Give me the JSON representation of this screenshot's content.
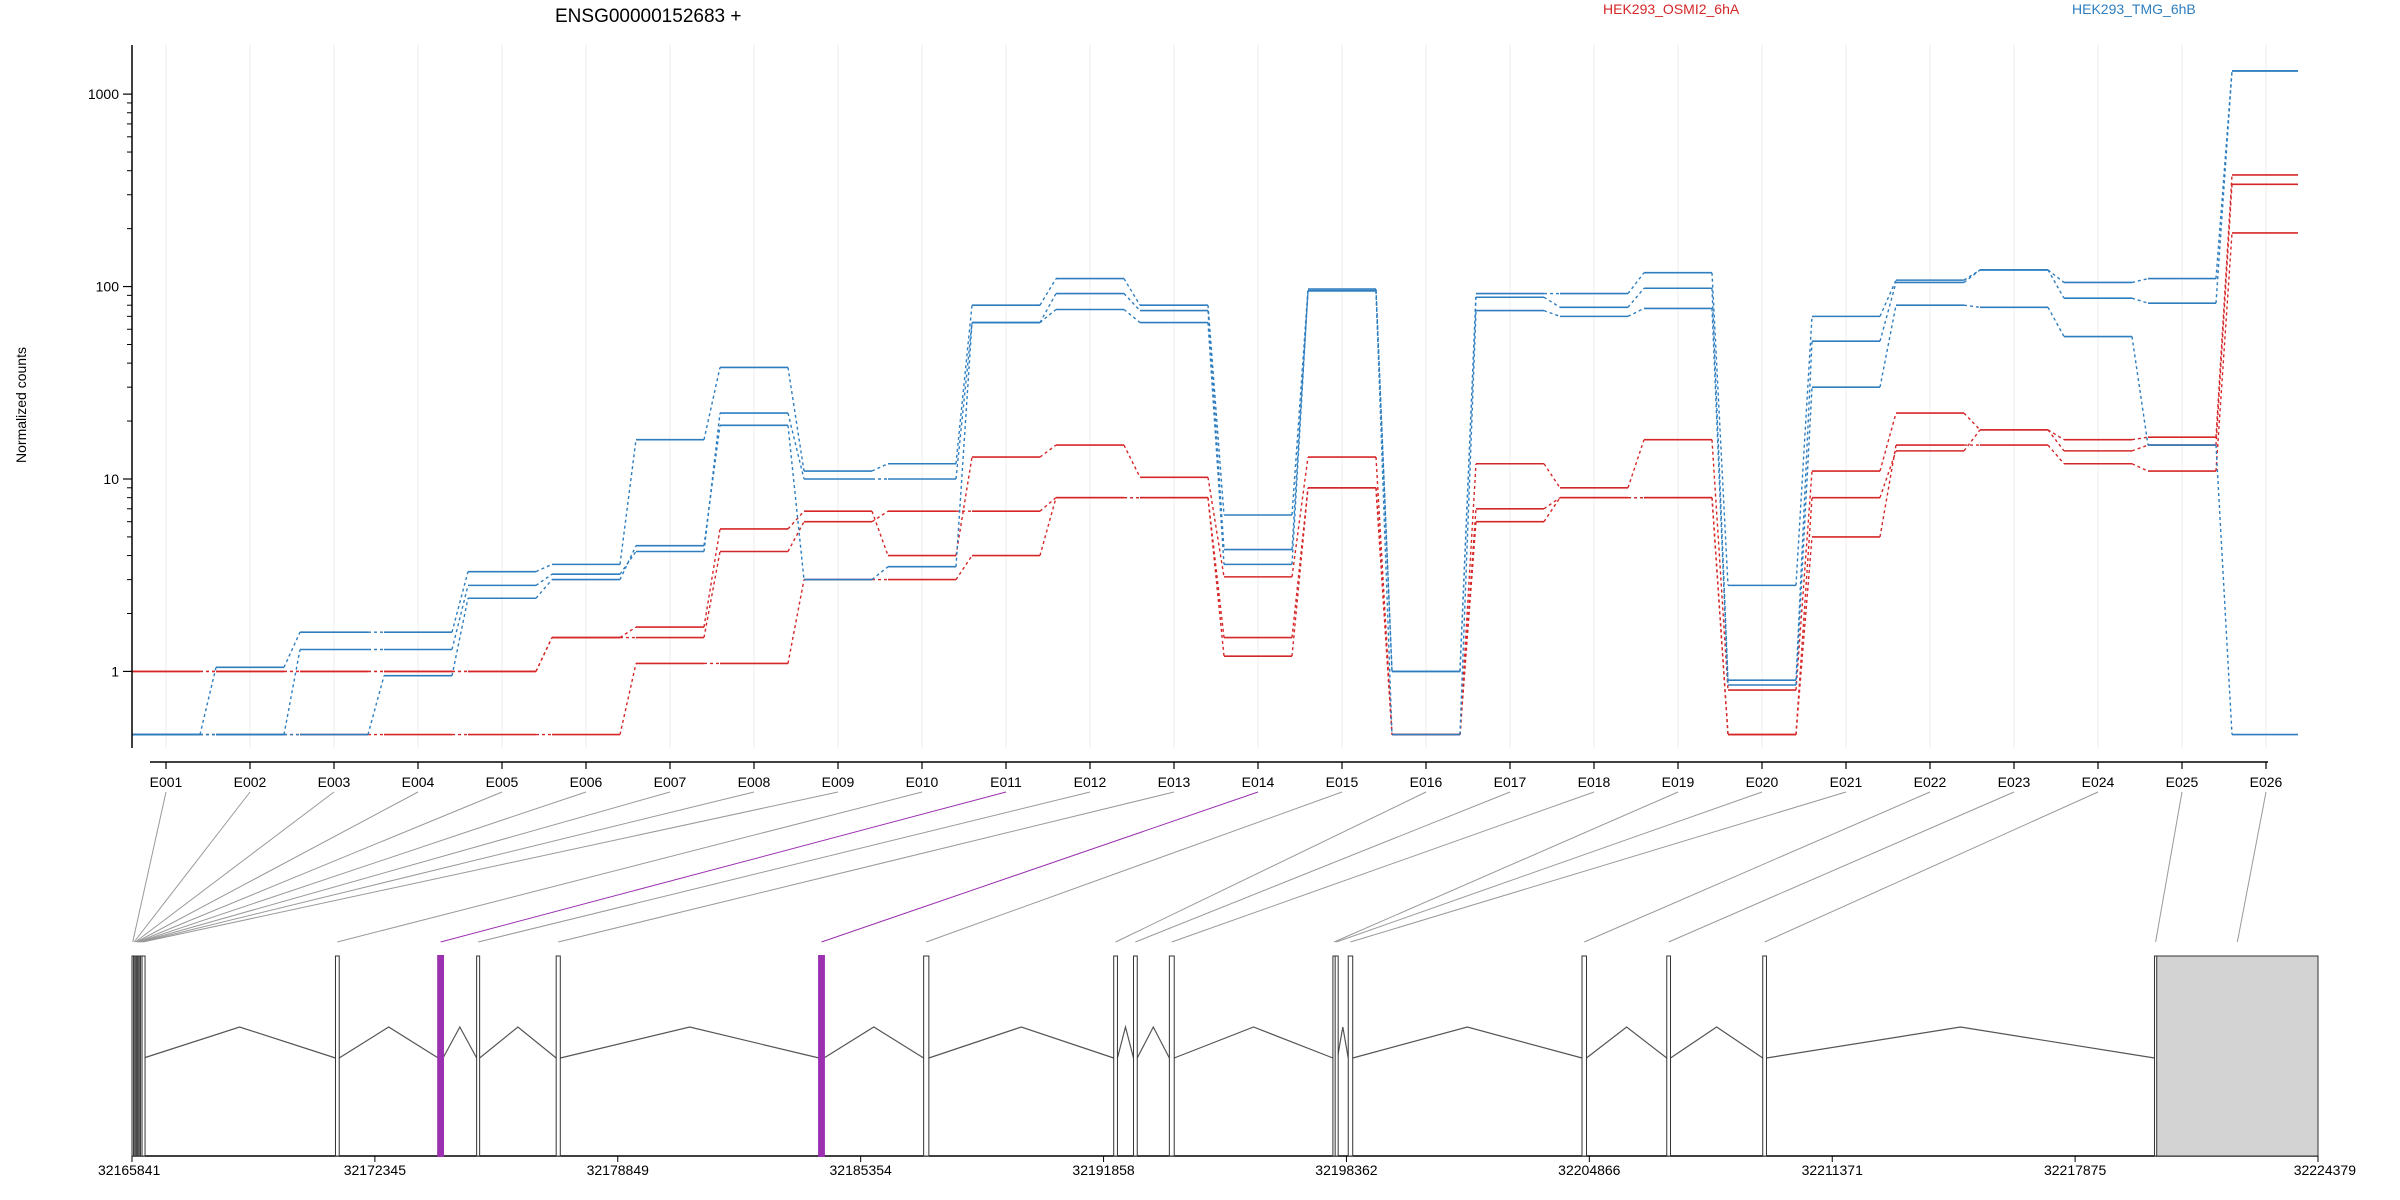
{
  "chart_data": {
    "type": "line",
    "title": "ENSG00000152683 +",
    "ylabel": "Normalized counts",
    "yscale": "log",
    "yticks": [
      "1",
      "10",
      "100",
      "1000"
    ],
    "ylim": [
      0.4,
      1800
    ],
    "grid": true,
    "legend_placement": "top",
    "legend": [
      {
        "label": "HEK293_OSMI2_6hA",
        "color": "#d62728"
      },
      {
        "label": "HEK293_TMG_6hB",
        "color": "#2e7ebf"
      }
    ],
    "categories": [
      "E001",
      "E002",
      "E003",
      "E004",
      "E005",
      "E006",
      "E007",
      "E008",
      "E009",
      "E010",
      "E011",
      "E012",
      "E013",
      "E014",
      "E015",
      "E016",
      "E017",
      "E018",
      "E019",
      "E020",
      "E021",
      "E022",
      "E023",
      "E024",
      "E025",
      "E026"
    ],
    "series": [
      {
        "color": "#d62728",
        "values": [
          1.0,
          1.0,
          1.0,
          1.0,
          1.0,
          1.5,
          1.7,
          5.5,
          6.8,
          4.0,
          13.0,
          15.0,
          10.2,
          3.1,
          13.0,
          0.47,
          12.0,
          9.0,
          16.0,
          0.8,
          11.0,
          22.0,
          18.0,
          16.0,
          16.5,
          380
        ]
      },
      {
        "color": "#d62728",
        "values": [
          0.47,
          0.47,
          0.47,
          0.47,
          0.47,
          0.47,
          1.1,
          1.1,
          3.0,
          3.0,
          4.0,
          8.0,
          8.0,
          1.2,
          9.0,
          0.47,
          7.0,
          8.0,
          8.0,
          0.47,
          5.0,
          15.0,
          15.0,
          12.0,
          11.0,
          190
        ]
      },
      {
        "color": "#d62728",
        "values": [
          1.0,
          1.0,
          1.0,
          1.0,
          1.0,
          1.5,
          1.5,
          4.2,
          6.0,
          6.8,
          6.8,
          8.0,
          8.0,
          1.5,
          9.0,
          0.47,
          6.0,
          8.0,
          8.0,
          0.47,
          8.0,
          14.0,
          18.0,
          14.0,
          15.0,
          340
        ]
      },
      {
        "color": "#2e7ebf",
        "values": [
          0.47,
          1.05,
          1.6,
          1.6,
          3.3,
          3.6,
          16.0,
          38.0,
          11.0,
          12.0,
          80.0,
          110.0,
          80.0,
          6.5,
          97.0,
          1.0,
          92.0,
          92.0,
          118.0,
          2.8,
          70.0,
          108.0,
          122.0,
          105.0,
          110.0,
          1320
        ]
      },
      {
        "color": "#2e7ebf",
        "values": [
          0.47,
          0.47,
          1.3,
          1.3,
          2.8,
          3.2,
          4.2,
          22.0,
          10.0,
          10.0,
          65.0,
          92.0,
          75.0,
          4.3,
          95.0,
          1.0,
          88.0,
          78.0,
          98.0,
          0.9,
          52.0,
          105.0,
          122.0,
          87.0,
          82.0,
          1320
        ]
      },
      {
        "color": "#2e7ebf",
        "values": [
          0.47,
          0.47,
          0.47,
          0.95,
          2.4,
          3.0,
          4.5,
          19.0,
          3.0,
          3.5,
          65.0,
          76.0,
          65.0,
          3.6,
          95.0,
          0.47,
          75.0,
          70.0,
          77.0,
          0.85,
          30.0,
          80.0,
          78.0,
          55.0,
          15.0,
          0.47
        ]
      }
    ],
    "gene_model": {
      "coordinate_ticks": [
        "32165841",
        "32172345",
        "32178849",
        "32185354",
        "32191858",
        "32198362",
        "32204866",
        "32211371",
        "32217875",
        "32224379"
      ],
      "coordinate_range": [
        32165841,
        32224379
      ],
      "highlight_color": "#9b30b0",
      "exons": [
        {
          "id": "E001",
          "start": 32165841,
          "end": 32165880
        },
        {
          "id": "E002",
          "start": 32165880,
          "end": 32165915
        },
        {
          "id": "E003",
          "start": 32165915,
          "end": 32165945
        },
        {
          "id": "E004",
          "start": 32165945,
          "end": 32165975
        },
        {
          "id": "E005",
          "start": 32165975,
          "end": 32166005
        },
        {
          "id": "E006",
          "start": 32166005,
          "end": 32166035
        },
        {
          "id": "E007",
          "start": 32166035,
          "end": 32166070
        },
        {
          "id": "E008",
          "start": 32166070,
          "end": 32166110
        },
        {
          "id": "E009",
          "start": 32166110,
          "end": 32166155
        },
        {
          "id": "E010",
          "start": 32171290,
          "end": 32171390
        },
        {
          "id": "E011",
          "start": 32174040,
          "end": 32174170,
          "highlight": true
        },
        {
          "id": "E012",
          "start": 32175070,
          "end": 32175150
        },
        {
          "id": "E013",
          "start": 32177200,
          "end": 32177310
        },
        {
          "id": "E014",
          "start": 32184240,
          "end": 32184370,
          "highlight": true
        },
        {
          "id": "E015",
          "start": 32187040,
          "end": 32187180
        },
        {
          "id": "E016",
          "start": 32192130,
          "end": 32192230
        },
        {
          "id": "E017",
          "start": 32192660,
          "end": 32192760
        },
        {
          "id": "E018",
          "start": 32193620,
          "end": 32193750
        },
        {
          "id": "E019",
          "start": 32198000,
          "end": 32198060
        },
        {
          "id": "E020",
          "start": 32198060,
          "end": 32198120
        },
        {
          "id": "E021",
          "start": 32198410,
          "end": 32198530
        },
        {
          "id": "E022",
          "start": 32204670,
          "end": 32204790
        },
        {
          "id": "E023",
          "start": 32206940,
          "end": 32207040
        },
        {
          "id": "E024",
          "start": 32209510,
          "end": 32209610
        },
        {
          "id": "E025",
          "start": 32220000,
          "end": 32220060
        },
        {
          "id": "E026",
          "start": 32220060,
          "end": 32224379
        }
      ],
      "introns": [
        [
          32166155,
          32171290
        ],
        [
          32171390,
          32174040
        ],
        [
          32174170,
          32175070
        ],
        [
          32175150,
          32177200
        ],
        [
          32177310,
          32184240
        ],
        [
          32184370,
          32187040
        ],
        [
          32187180,
          32192130
        ],
        [
          32192230,
          32192660
        ],
        [
          32192760,
          32193620
        ],
        [
          32193750,
          32198000
        ],
        [
          32198120,
          32198410
        ],
        [
          32198530,
          32204670
        ],
        [
          32204790,
          32206940
        ],
        [
          32207040,
          32209510
        ],
        [
          32209610,
          32220000
        ]
      ]
    }
  }
}
